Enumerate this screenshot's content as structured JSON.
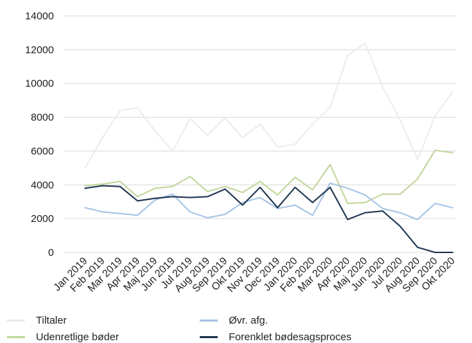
{
  "chart_data": {
    "type": "line",
    "title": "",
    "xlabel": "",
    "ylabel": "",
    "ylim": [
      0,
      14000
    ],
    "yticks": [
      0,
      2000,
      4000,
      6000,
      8000,
      10000,
      12000,
      14000
    ],
    "ytick_labels": [
      "0",
      "2000",
      "4000",
      "6000",
      "8000",
      "10000",
      "12000",
      "14000"
    ],
    "grid": "horizontal",
    "legend_position": "bottom",
    "categories": [
      "Jan 2019",
      "Feb 2019",
      "Mar 2019",
      "Apr 2019",
      "Maj 2019",
      "Jun 2019",
      "Jul 2019",
      "Aug 2019",
      "Sep 2019",
      "Okt 2019",
      "Nov 2019",
      "Dec 2019",
      "Jan 2020",
      "Feb 2020",
      "Mar 2020",
      "Apr 2020",
      "Maj 2020",
      "Jun 2020",
      "Jul 2020",
      "Aug 2020",
      "Sep 2020",
      "Okt 2020"
    ],
    "series": [
      {
        "name": "Tiltaler",
        "color": "#ececec",
        "values": [
          5000,
          6800,
          8400,
          8550,
          7200,
          6000,
          7900,
          6950,
          7950,
          6800,
          7600,
          6250,
          6400,
          7600,
          8600,
          11650,
          12400,
          9800,
          7850,
          5500,
          8100,
          9500
        ]
      },
      {
        "name": "Udenretlige bøder",
        "color": "#c2d69b",
        "values": [
          3950,
          4050,
          4200,
          3300,
          3800,
          3900,
          4500,
          3600,
          3900,
          3550,
          4200,
          3400,
          4450,
          3700,
          5200,
          2900,
          2950,
          3450,
          3450,
          4350,
          6050,
          5900
        ]
      },
      {
        "name": "Øvr. afg.",
        "color": "#a6c3e6",
        "values": [
          2650,
          2400,
          2300,
          2200,
          3100,
          3450,
          2400,
          2050,
          2250,
          2950,
          3250,
          2600,
          2800,
          2200,
          4100,
          3800,
          3400,
          2600,
          2350,
          1950,
          2900,
          2650
        ]
      },
      {
        "name": "Forenklet bødesagsproces",
        "color": "#1f3550",
        "values": [
          3800,
          3950,
          3900,
          3050,
          3200,
          3300,
          3250,
          3300,
          3750,
          2800,
          3850,
          2650,
          3850,
          2950,
          3850,
          1950,
          2350,
          2450,
          1550,
          300,
          0,
          0
        ]
      }
    ]
  }
}
